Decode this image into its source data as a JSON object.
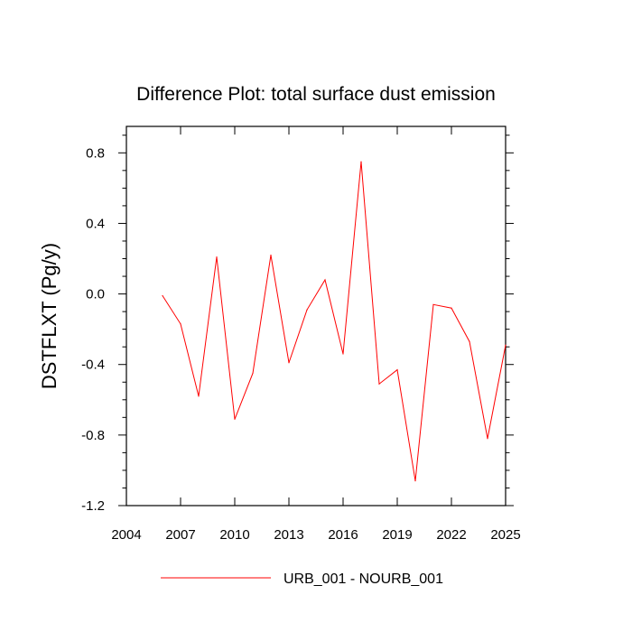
{
  "chart_data": {
    "type": "line",
    "title": "Difference Plot: total surface dust emission",
    "xlabel": "",
    "ylabel": "DSTFLXT  (Pg/y)",
    "xlim": [
      2004,
      2025
    ],
    "ylim": [
      -1.2,
      0.95
    ],
    "x_ticks": [
      2004,
      2007,
      2010,
      2013,
      2016,
      2019,
      2022,
      2025
    ],
    "y_ticks": [
      -1.2,
      -0.8,
      -0.4,
      0.0,
      0.4,
      0.8
    ],
    "y_tick_labels": [
      "-1.2",
      "-0.8",
      "-0.4",
      "0.0",
      "0.4",
      "0.8"
    ],
    "grid": false,
    "legend_position": "bottom",
    "series": [
      {
        "name": "URB_001 - NOURB_001",
        "color": "#ff0000",
        "x": [
          2006,
          2007,
          2008,
          2009,
          2010,
          2011,
          2012,
          2013,
          2014,
          2015,
          2016,
          2017,
          2018,
          2019,
          2020,
          2021,
          2022,
          2023,
          2024,
          2025
        ],
        "y": [
          -0.01,
          -0.17,
          -0.58,
          0.21,
          -0.71,
          -0.45,
          0.22,
          -0.39,
          -0.09,
          0.08,
          -0.34,
          0.75,
          -0.51,
          -0.43,
          -1.06,
          -0.06,
          -0.08,
          -0.27,
          -0.82,
          -0.29
        ]
      }
    ]
  }
}
